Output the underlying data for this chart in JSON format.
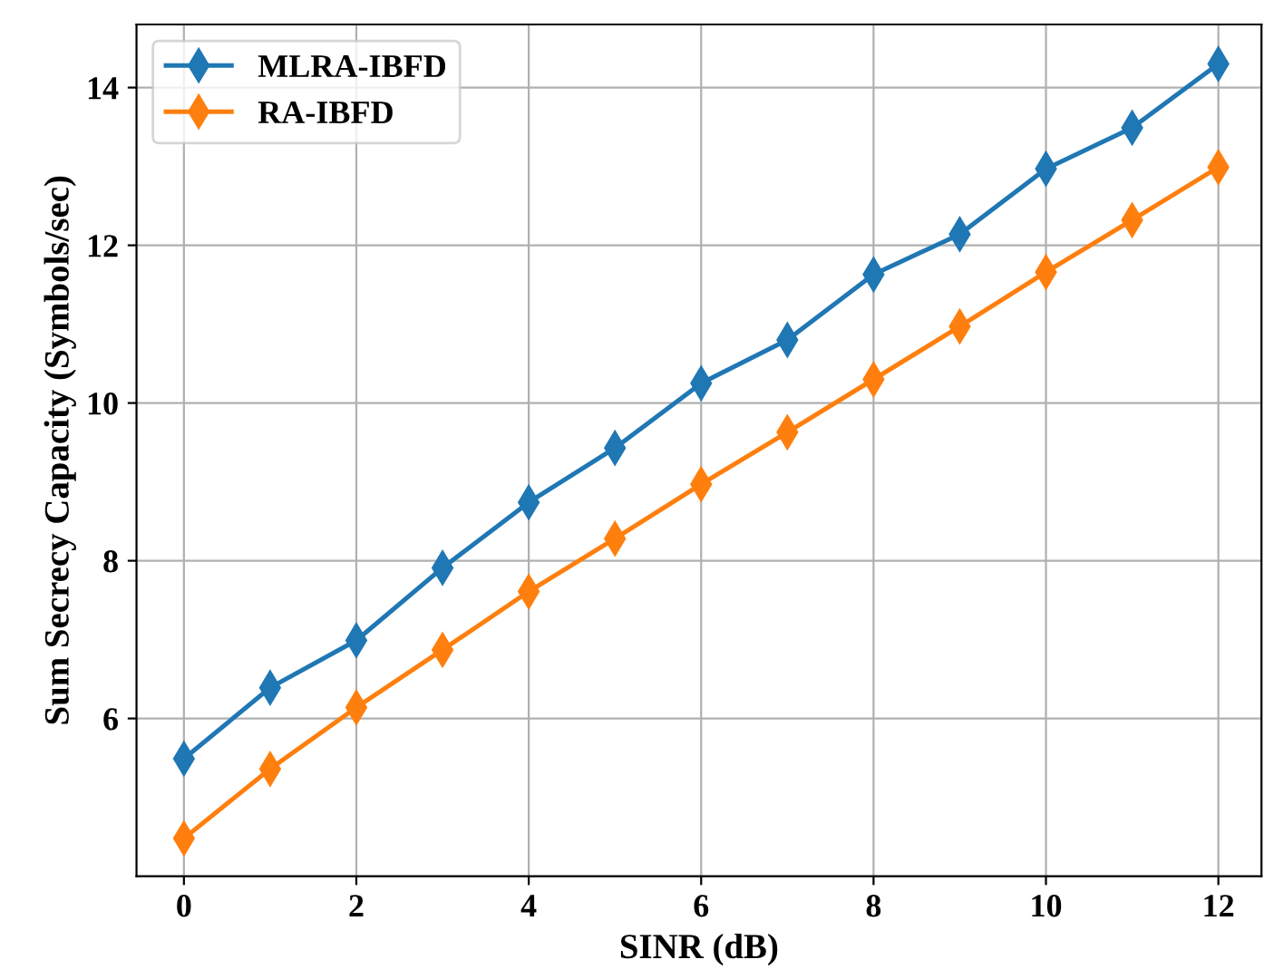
{
  "chart_data": {
    "type": "line",
    "xlabel": "SINR (dB)",
    "ylabel": "Sum Secrecy Capacity (Symbols/sec)",
    "x": [
      0,
      1,
      2,
      3,
      4,
      5,
      6,
      7,
      8,
      9,
      10,
      11,
      12
    ],
    "series": [
      {
        "name": "MLRA-IBFD",
        "color": "#1f77b4",
        "values": [
          5.49,
          6.39,
          6.99,
          7.91,
          8.74,
          9.43,
          10.25,
          10.8,
          11.63,
          12.14,
          12.97,
          13.49,
          14.3
        ]
      },
      {
        "name": "RA-IBFD",
        "color": "#ff7f0e",
        "values": [
          4.48,
          5.36,
          6.14,
          6.87,
          7.61,
          8.28,
          8.97,
          9.63,
          10.3,
          10.97,
          11.66,
          12.32,
          12.99
        ]
      }
    ],
    "xlim": [
      -0.55,
      12.5
    ],
    "ylim": [
      4.0,
      14.8
    ],
    "xticks": [
      0,
      2,
      4,
      6,
      8,
      10,
      12
    ],
    "yticks": [
      6,
      8,
      10,
      12,
      14
    ],
    "grid": true,
    "legend": "top left",
    "marker": "diamond",
    "line_style": "solid"
  }
}
